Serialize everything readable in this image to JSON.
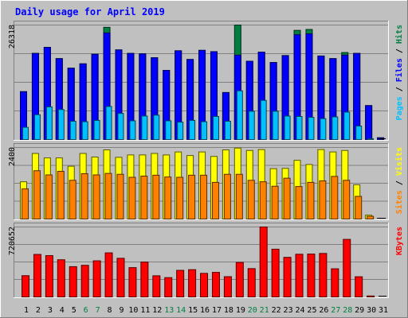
{
  "chart_data": {
    "type": "bar",
    "title": "Daily usage for April 2019",
    "categories": [
      "1",
      "2",
      "3",
      "4",
      "5",
      "6",
      "7",
      "8",
      "9",
      "10",
      "11",
      "12",
      "13",
      "14",
      "15",
      "16",
      "17",
      "18",
      "19",
      "20",
      "21",
      "22",
      "23",
      "24",
      "25",
      "26",
      "27",
      "28",
      "29",
      "30",
      "31"
    ],
    "weekend_days": [
      "6",
      "7",
      "13",
      "14",
      "20",
      "21",
      "27",
      "28"
    ],
    "panels": [
      {
        "name": "hits-files-pages",
        "max_label": "26318",
        "ylim": [
          0,
          26318
        ],
        "axis_label_parts": [
          {
            "text": "Pages",
            "color": "#00c0ff"
          },
          {
            "text": " / ",
            "color": "#000000"
          },
          {
            "text": "Files",
            "color": "#0000ff"
          },
          {
            "text": " / ",
            "color": "#000000"
          },
          {
            "text": "Hits",
            "color": "#008040"
          }
        ],
        "series": [
          {
            "name": "Hits",
            "color": "#008040",
            "values": [
              11000,
              19800,
              21200,
              18600,
              16400,
              17400,
              19600,
              25800,
              20600,
              19800,
              19700,
              18800,
              15900,
              20400,
              18400,
              20500,
              20200,
              10800,
              26318,
              18000,
              20100,
              17700,
              19300,
              25100,
              25300,
              19200,
              18600,
              20000,
              19800,
              7800,
              400
            ]
          },
          {
            "name": "Files",
            "color": "#0000ff",
            "values": [
              11000,
              19800,
              21200,
              18600,
              16400,
              17400,
              19600,
              24500,
              20600,
              19800,
              19700,
              18800,
              15900,
              20400,
              18400,
              20500,
              20200,
              10800,
              19400,
              18000,
              20100,
              17700,
              19300,
              24100,
              24300,
              19200,
              18600,
              19400,
              19800,
              7800,
              400
            ]
          },
          {
            "name": "Pages",
            "color": "#00c0ff",
            "values": [
              2800,
              5700,
              7500,
              6900,
              4200,
              4100,
              4400,
              7600,
              6000,
              4300,
              5400,
              5600,
              4300,
              4000,
              4400,
              4100,
              5300,
              4200,
              11200,
              6500,
              9000,
              6500,
              5400,
              5300,
              5100,
              4800,
              5200,
              6300,
              3100,
              200,
              0
            ]
          }
        ]
      },
      {
        "name": "visits-sites",
        "max_label": "2400",
        "ylim": [
          0,
          2400
        ],
        "axis_label_parts": [
          {
            "text": "Sites",
            "color": "#ff8000"
          },
          {
            "text": " / ",
            "color": "#000000"
          },
          {
            "text": "Visits",
            "color": "#ffff00"
          }
        ],
        "series": [
          {
            "name": "Visits",
            "color": "#ffff00",
            "values": [
              1250,
              2200,
              2050,
              2050,
              1770,
              2200,
              2080,
              2320,
              2070,
              2150,
              2150,
              2200,
              2150,
              2250,
              2130,
              2250,
              2100,
              2320,
              2380,
              2300,
              2330,
              1690,
              1700,
              1970,
              1830,
              2330,
              2250,
              2300,
              1150,
              130,
              0
            ]
          },
          {
            "name": "Sites",
            "color": "#ff8000",
            "values": [
              1010,
              1620,
              1480,
              1600,
              1300,
              1520,
              1480,
              1530,
              1500,
              1400,
              1440,
              1470,
              1410,
              1400,
              1470,
              1470,
              1230,
              1500,
              1500,
              1300,
              1250,
              1100,
              1370,
              1090,
              1230,
              1280,
              1430,
              1300,
              760,
              90,
              0
            ]
          }
        ]
      },
      {
        "name": "kbytes",
        "max_label": "720652",
        "ylim": [
          0,
          720652
        ],
        "axis_label_parts": [
          {
            "text": "KBytes",
            "color": "#ff0000"
          }
        ],
        "series": [
          {
            "name": "KBytes",
            "color": "#ff0000",
            "values": [
              219000,
              438000,
              426000,
              383000,
              312000,
              326000,
              372000,
              454000,
              398000,
              302000,
              359000,
              218000,
              199000,
              274000,
              281000,
              243000,
              253000,
              209000,
              355000,
              292000,
              720652,
              492000,
              408000,
              440000,
              442000,
              448000,
              290000,
              593000,
              208000,
              10000,
              0
            ]
          }
        ]
      }
    ]
  }
}
